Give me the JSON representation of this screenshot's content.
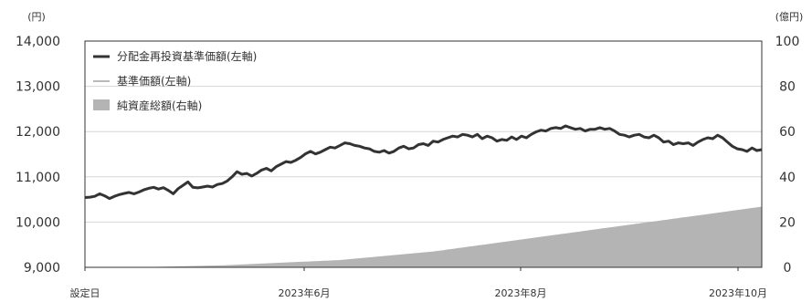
{
  "chart_data": {
    "type": "line",
    "left_axis": {
      "unit": "(円)",
      "ylim": [
        9000,
        14000
      ],
      "ticks": [
        "9,000",
        "10,000",
        "11,000",
        "12,000",
        "13,000",
        "14,000"
      ]
    },
    "right_axis": {
      "unit": "(億円)",
      "ylim": [
        0,
        100
      ],
      "ticks": [
        "0",
        "20",
        "40",
        "60",
        "80",
        "100"
      ]
    },
    "x_ticks": [
      "設定日",
      "2023年6月",
      "2023年8月",
      "2023年10月"
    ],
    "grid": true,
    "legend_position": "top-left",
    "series": [
      {
        "name": "分配金再投資基準価額(左軸)",
        "axis": "left",
        "kind": "line",
        "color": "#333333",
        "values": [
          9980,
          10000,
          10050,
          10200,
          10080,
          9920,
          10050,
          10150,
          10220,
          10280,
          10200,
          10300,
          10430,
          10520,
          10580,
          10480,
          10560,
          10400,
          10200,
          10500,
          10700,
          10900,
          10580,
          10550,
          10600,
          10650,
          10600,
          10750,
          10800,
          10950,
          11200,
          11500,
          11350,
          11400,
          11250,
          11400,
          11600,
          11700,
          11550,
          11800,
          11950,
          12100,
          12050,
          12180,
          12350,
          12560,
          12700,
          12550,
          12650,
          12800,
          12950,
          12900,
          13050,
          13200,
          13150,
          13050,
          13000,
          12900,
          12850,
          12700,
          12650,
          12750,
          12600,
          12700,
          12900,
          13000,
          12850,
          12900,
          13100,
          13150,
          13050,
          13300,
          13250,
          13400,
          13500,
          13600,
          13550,
          13700,
          13650,
          13550,
          13700,
          13450,
          13600,
          13500,
          13300,
          13400,
          13350,
          13550,
          13400,
          13600,
          13500,
          13700,
          13850,
          13950,
          13900,
          14050,
          14100,
          14050,
          14200,
          14100,
          14000,
          14050,
          13900,
          14000,
          14000,
          14100,
          14000,
          14050,
          13900,
          13700,
          13650,
          13550,
          13650,
          13700,
          13550,
          13500,
          13650,
          13500,
          13250,
          13300,
          13100,
          13200,
          13150,
          13200,
          13050,
          13250,
          13400,
          13500,
          13450,
          13650,
          13500,
          13250,
          13000,
          12850,
          12800,
          12700,
          12900,
          12750,
          12800
        ],
        "display_scale": 0.375,
        "display_offset": 6800
      },
      {
        "name": "基準価額(左軸)",
        "axis": "left",
        "kind": "line",
        "color": "#a0a0a0"
      },
      {
        "name": "純資産総額(右軸)",
        "axis": "right",
        "kind": "area",
        "color": "#b4b4b4",
        "values": [
          0,
          0,
          0,
          0,
          0,
          0,
          0,
          0,
          0,
          0,
          0.05,
          0.1,
          0.1,
          0.15,
          0.2,
          0.25,
          0.3,
          0.35,
          0.4,
          0.45,
          0.5,
          0.55,
          0.6,
          0.65,
          0.7,
          0.75,
          0.8,
          0.85,
          0.9,
          1,
          1.1,
          1.2,
          1.3,
          1.4,
          1.5,
          1.6,
          1.7,
          1.8,
          1.9,
          2,
          2.1,
          2.2,
          2.3,
          2.4,
          2.5,
          2.6,
          2.7,
          2.8,
          2.9,
          3,
          3.1,
          3.2,
          3.4,
          3.6,
          3.8,
          4,
          4.2,
          4.4,
          4.6,
          4.8,
          5,
          5.2,
          5.4,
          5.6,
          5.8,
          6,
          6.2,
          6.4,
          6.6,
          6.8,
          7,
          7.3,
          7.6,
          7.9,
          8.2,
          8.5,
          8.8,
          9.1,
          9.4,
          9.7,
          10,
          10.3,
          10.6,
          10.9,
          11.2,
          11.5,
          11.8,
          12.1,
          12.4,
          12.7,
          13,
          13.3,
          13.6,
          13.9,
          14.2,
          14.5,
          14.8,
          15.1,
          15.4,
          15.7,
          16,
          16.3,
          16.6,
          16.9,
          17.2,
          17.5,
          17.8,
          18.1,
          18.4,
          18.7,
          19,
          19.3,
          19.6,
          19.9,
          20.2,
          20.5,
          20.8,
          21.1,
          21.4,
          21.7,
          22,
          22.3,
          22.6,
          22.9,
          23.2,
          23.5,
          23.8,
          24.1,
          24.4,
          24.7,
          25,
          25.3,
          25.6,
          25.9,
          26.2,
          26.5,
          26.8
        ]
      }
    ]
  }
}
